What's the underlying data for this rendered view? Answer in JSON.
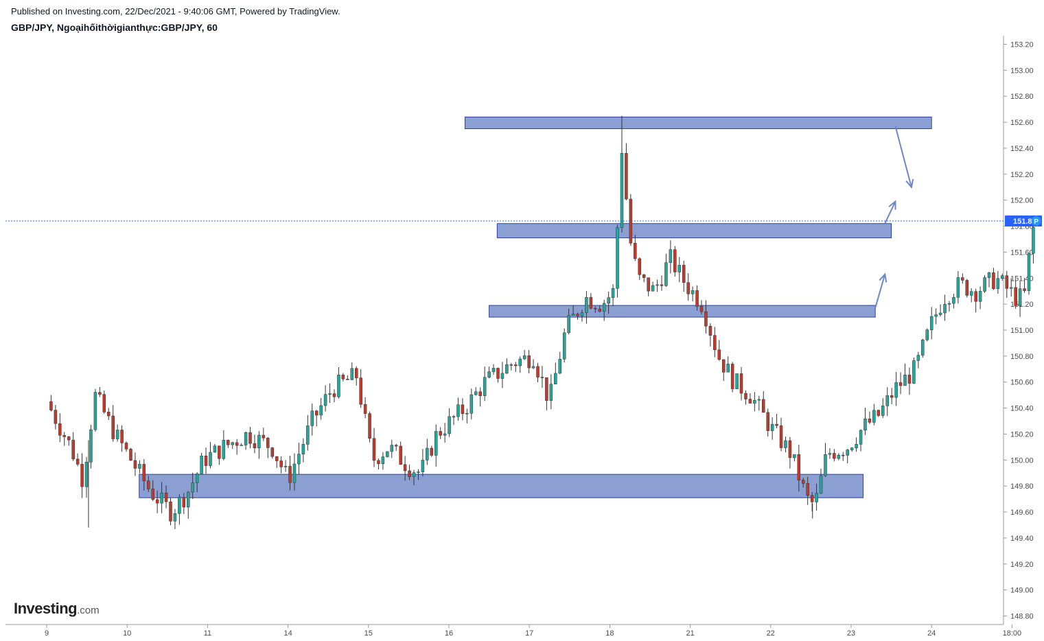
{
  "header": {
    "published": "Published on Investing.com, 22/Dec/2021 - 9:40:06 GMT, Powered by TradingView.",
    "title": "GBP/JPY, Ngoạihốithờigianthực:GBP/JPY, 60"
  },
  "brand": {
    "name": "Investing",
    "suffix": ".com"
  },
  "chart_data": {
    "type": "candlestick",
    "symbol": "GBP/JPY",
    "interval": "60",
    "ylim": [
      148.7,
      153.3
    ],
    "y_ticks": [
      "153.20",
      "153.00",
      "152.80",
      "152.60",
      "152.40",
      "152.20",
      "152.00",
      "151.80",
      "151.60",
      "151.40",
      "151.20",
      "151.00",
      "150.80",
      "150.60",
      "150.40",
      "150.20",
      "150.00",
      "149.80",
      "149.60",
      "149.40",
      "149.20",
      "149.00",
      "148.80"
    ],
    "x_ticks": [
      "9",
      "10",
      "11",
      "14",
      "15",
      "16",
      "17",
      "18",
      "21",
      "22",
      "23",
      "24",
      "18:00"
    ],
    "last_price": "151.84",
    "marker_label": "P",
    "zones": [
      {
        "from_tick": 5.2,
        "to_tick": 11.0,
        "low": 152.55,
        "high": 152.64
      },
      {
        "from_tick": 5.6,
        "to_tick": 10.5,
        "low": 151.71,
        "high": 151.82
      },
      {
        "from_tick": 5.5,
        "to_tick": 10.3,
        "low": 151.1,
        "high": 151.19
      },
      {
        "from_tick": 1.15,
        "to_tick": 10.15,
        "low": 149.71,
        "high": 149.89
      }
    ],
    "arrows": [
      {
        "from": [
          10.3,
          151.17
        ],
        "to": [
          10.42,
          151.43
        ]
      },
      {
        "from": [
          10.42,
          151.82
        ],
        "to": [
          10.55,
          151.99
        ]
      },
      {
        "from": [
          10.55,
          152.57
        ],
        "to": [
          10.75,
          152.1
        ]
      }
    ],
    "path": [
      [
        0,
        150.45
      ],
      [
        0.3,
        150.1
      ],
      [
        0.45,
        149.85
      ],
      [
        0.6,
        150.5
      ],
      [
        0.85,
        150.2
      ],
      [
        1.0,
        150.05
      ],
      [
        1.3,
        149.75
      ],
      [
        1.55,
        149.6
      ],
      [
        1.75,
        149.75
      ],
      [
        1.95,
        150.0
      ],
      [
        2.2,
        150.1
      ],
      [
        2.5,
        150.2
      ],
      [
        2.8,
        150.1
      ],
      [
        3.0,
        149.85
      ],
      [
        3.3,
        150.3
      ],
      [
        3.55,
        150.55
      ],
      [
        3.85,
        150.65
      ],
      [
        4.05,
        150.0
      ],
      [
        4.25,
        150.1
      ],
      [
        4.5,
        149.95
      ],
      [
        4.65,
        149.9
      ],
      [
        4.85,
        150.2
      ],
      [
        5.2,
        150.4
      ],
      [
        5.45,
        150.6
      ],
      [
        5.8,
        150.75
      ],
      [
        6.05,
        150.8
      ],
      [
        6.25,
        150.45
      ],
      [
        6.45,
        151.0
      ],
      [
        6.7,
        151.25
      ],
      [
        6.9,
        151.2
      ],
      [
        7.05,
        151.3
      ],
      [
        7.15,
        152.4
      ],
      [
        7.25,
        151.7
      ],
      [
        7.35,
        151.4
      ],
      [
        7.55,
        151.3
      ],
      [
        7.75,
        151.55
      ],
      [
        7.95,
        151.35
      ],
      [
        8.15,
        151.2
      ],
      [
        8.35,
        150.8
      ],
      [
        8.55,
        150.6
      ],
      [
        8.75,
        150.5
      ],
      [
        9.0,
        150.25
      ],
      [
        9.25,
        150.05
      ],
      [
        9.45,
        149.7
      ],
      [
        9.55,
        149.65
      ],
      [
        9.7,
        150.05
      ],
      [
        9.95,
        150.1
      ],
      [
        10.15,
        150.25
      ],
      [
        10.35,
        150.35
      ],
      [
        10.55,
        150.55
      ],
      [
        10.8,
        150.7
      ],
      [
        11.0,
        151.05
      ],
      [
        11.15,
        151.25
      ],
      [
        11.35,
        151.35
      ],
      [
        11.55,
        151.3
      ],
      [
        11.8,
        151.4
      ],
      [
        12.05,
        151.25
      ],
      [
        12.15,
        151.25
      ],
      [
        12.25,
        151.75
      ],
      [
        12.3,
        151.84
      ]
    ],
    "spikes": [
      {
        "x": 0.52,
        "low": 149.48
      },
      {
        "x": 7.15,
        "high": 152.65
      },
      {
        "x": 9.52,
        "low": 149.55
      }
    ]
  },
  "colors": {
    "up": "#26a69a",
    "down": "#c0392b",
    "zone_fill": "#8c9fd3",
    "zone_stroke": "#2b3fa1",
    "price_line": "#2962ff",
    "price_tag_bg": "#2962ff",
    "arrow": "#6d86c9",
    "axis": "#9598a1",
    "marker": "#2196f3"
  }
}
